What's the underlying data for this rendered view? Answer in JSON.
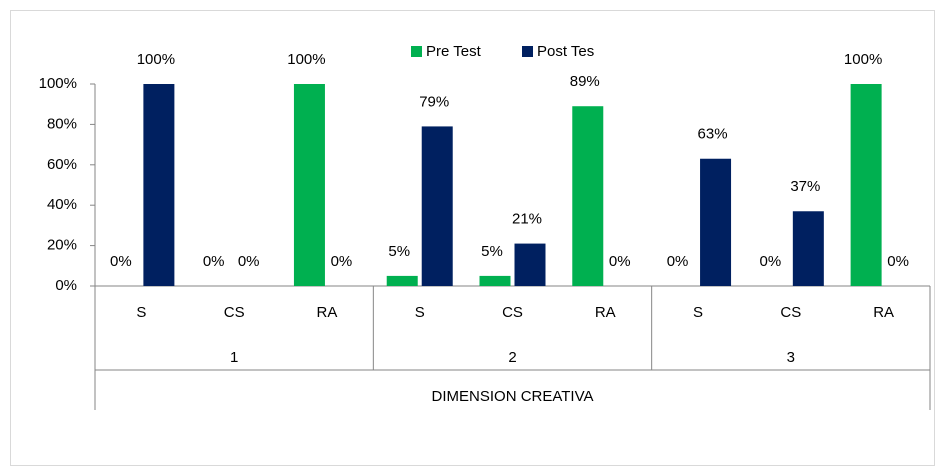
{
  "chart_data": {
    "type": "bar",
    "categories": [
      "S",
      "CS",
      "RA",
      "S",
      "CS",
      "RA",
      "S",
      "CS",
      "RA"
    ],
    "groups": [
      "1",
      "2",
      "3"
    ],
    "group_title": "DIMENSION CREATIVA",
    "series": [
      {
        "name": "Pre Test",
        "color": "#00b050",
        "values": [
          0,
          0,
          100,
          5,
          5,
          89,
          0,
          0,
          100
        ],
        "value_labels": [
          "0%",
          "0%",
          "100%",
          "5%",
          "5%",
          "89%",
          "0%",
          "0%",
          "100%"
        ]
      },
      {
        "name": "Post Tes",
        "color": "#002060",
        "values": [
          100,
          0,
          0,
          79,
          21,
          0,
          63,
          37,
          0
        ],
        "value_labels": [
          "100%",
          "0%",
          "0%",
          "79%",
          "21%",
          "0%",
          "63%",
          "37%",
          "0%"
        ]
      }
    ],
    "ylim": [
      0,
      100
    ],
    "yticks": [
      {
        "value": 0,
        "label": "0%"
      },
      {
        "value": 20,
        "label": "20%"
      },
      {
        "value": 40,
        "label": "40%"
      },
      {
        "value": 60,
        "label": "60%"
      },
      {
        "value": 80,
        "label": "80%"
      },
      {
        "value": 100,
        "label": "100%"
      }
    ],
    "legend": "top",
    "grid": false
  }
}
